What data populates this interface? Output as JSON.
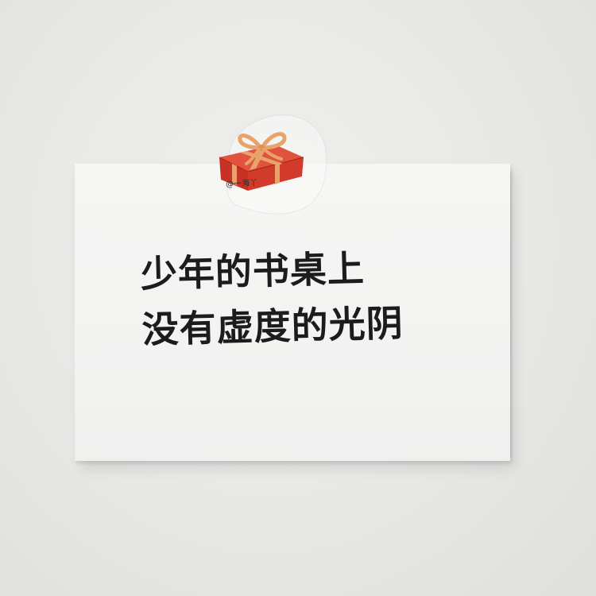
{
  "note": {
    "line1": "少年的书桌上",
    "line2": "没有虚度的光阴"
  },
  "sticker": {
    "icon": "gift-box-icon",
    "signature": "@一海丫"
  },
  "colors": {
    "wall": "#e9e9e7",
    "card": "#f4f4f3",
    "ink": "#1c1c1c",
    "gift_red": "#d23a2c",
    "ribbon": "#e8a36a"
  }
}
